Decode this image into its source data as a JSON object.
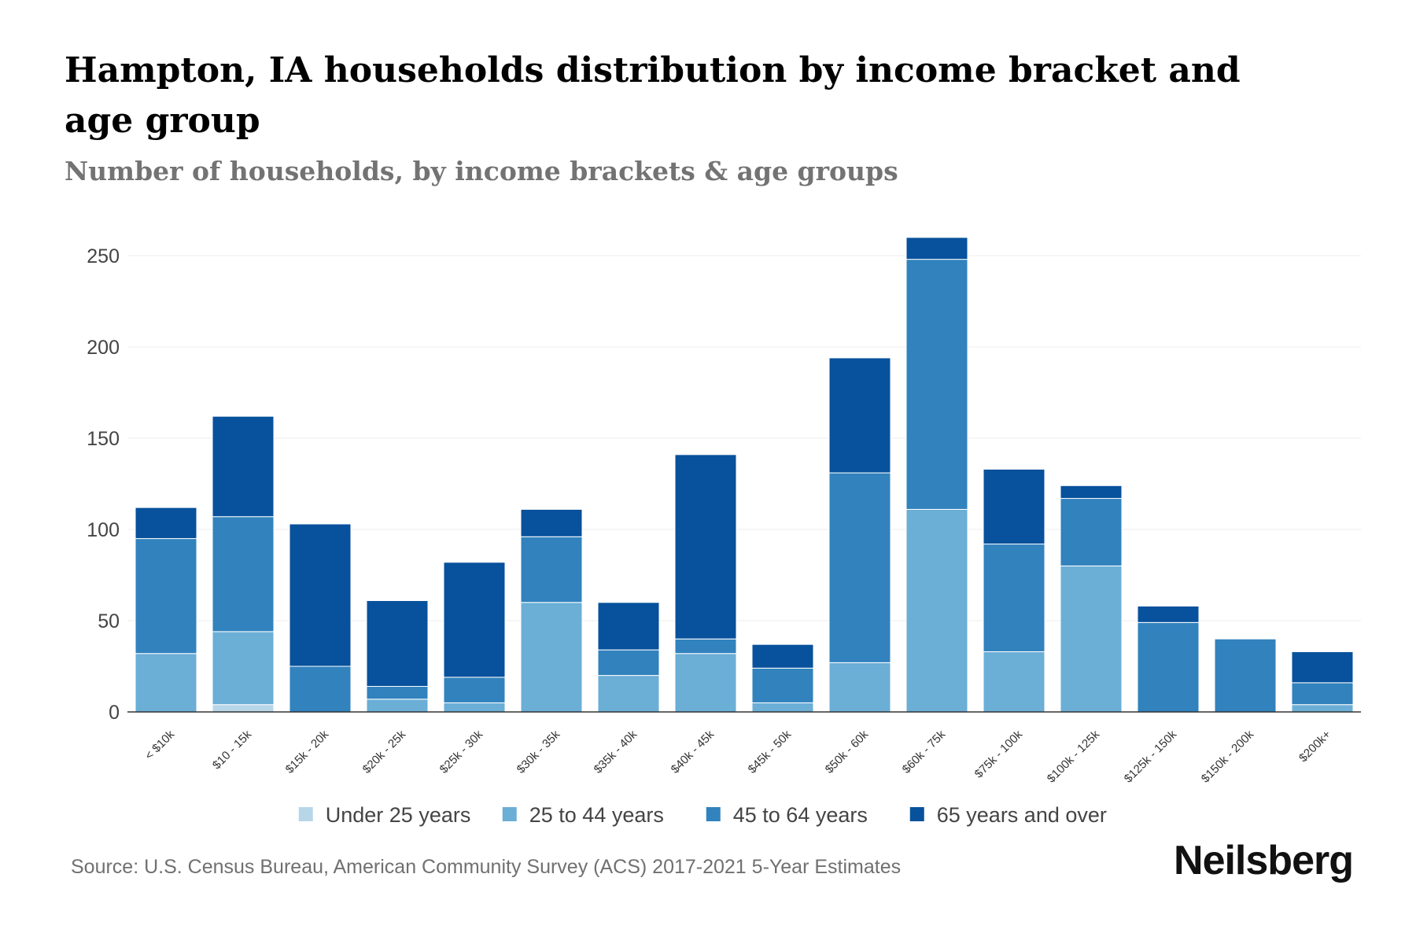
{
  "title": "Hampton, IA households distribution by income bracket and age group",
  "subtitle": "Number of households, by income brackets & age groups",
  "source": "Source: U.S. Census Bureau, American Community Survey (ACS) 2017-2021 5-Year Estimates",
  "brand": "Neilsberg",
  "colors": {
    "Under 25 years": "#b7d7e8",
    "25 to 44 years": "#6baed6",
    "45 to 64 years": "#3182bd",
    "65 years and over": "#08519c"
  },
  "chart_data": {
    "type": "bar",
    "stacked": true,
    "title": "Hampton, IA households distribution by income bracket and age group",
    "xlabel": "",
    "ylabel": "",
    "ylim": [
      0,
      260
    ],
    "yticks": [
      0,
      50,
      100,
      150,
      200,
      250
    ],
    "grid": true,
    "legend": "bottom",
    "categories": [
      "< $10k",
      "$10 - 15k",
      "$15k - 20k",
      "$20k - 25k",
      "$25k - 30k",
      "$30k - 35k",
      "$35k - 40k",
      "$40k - 45k",
      "$45k - 50k",
      "$50k - 60k",
      "$60k - 75k",
      "$75k - 100k",
      "$100k - 125k",
      "$125k - 150k",
      "$150k - 200k",
      "$200k+"
    ],
    "series": [
      {
        "name": "Under 25 years",
        "values": [
          0,
          4,
          0,
          0,
          0,
          0,
          0,
          0,
          0,
          0,
          0,
          0,
          0,
          0,
          0,
          0
        ]
      },
      {
        "name": "25 to 44 years",
        "values": [
          32,
          40,
          0,
          7,
          5,
          60,
          20,
          32,
          5,
          27,
          111,
          33,
          80,
          0,
          0,
          4
        ]
      },
      {
        "name": "45 to 64 years",
        "values": [
          63,
          63,
          25,
          7,
          14,
          36,
          14,
          8,
          19,
          104,
          137,
          59,
          37,
          49,
          40,
          12
        ]
      },
      {
        "name": "65 years and over",
        "values": [
          17,
          55,
          78,
          47,
          63,
          15,
          26,
          101,
          13,
          63,
          12,
          41,
          7,
          9,
          0,
          17
        ]
      }
    ]
  }
}
